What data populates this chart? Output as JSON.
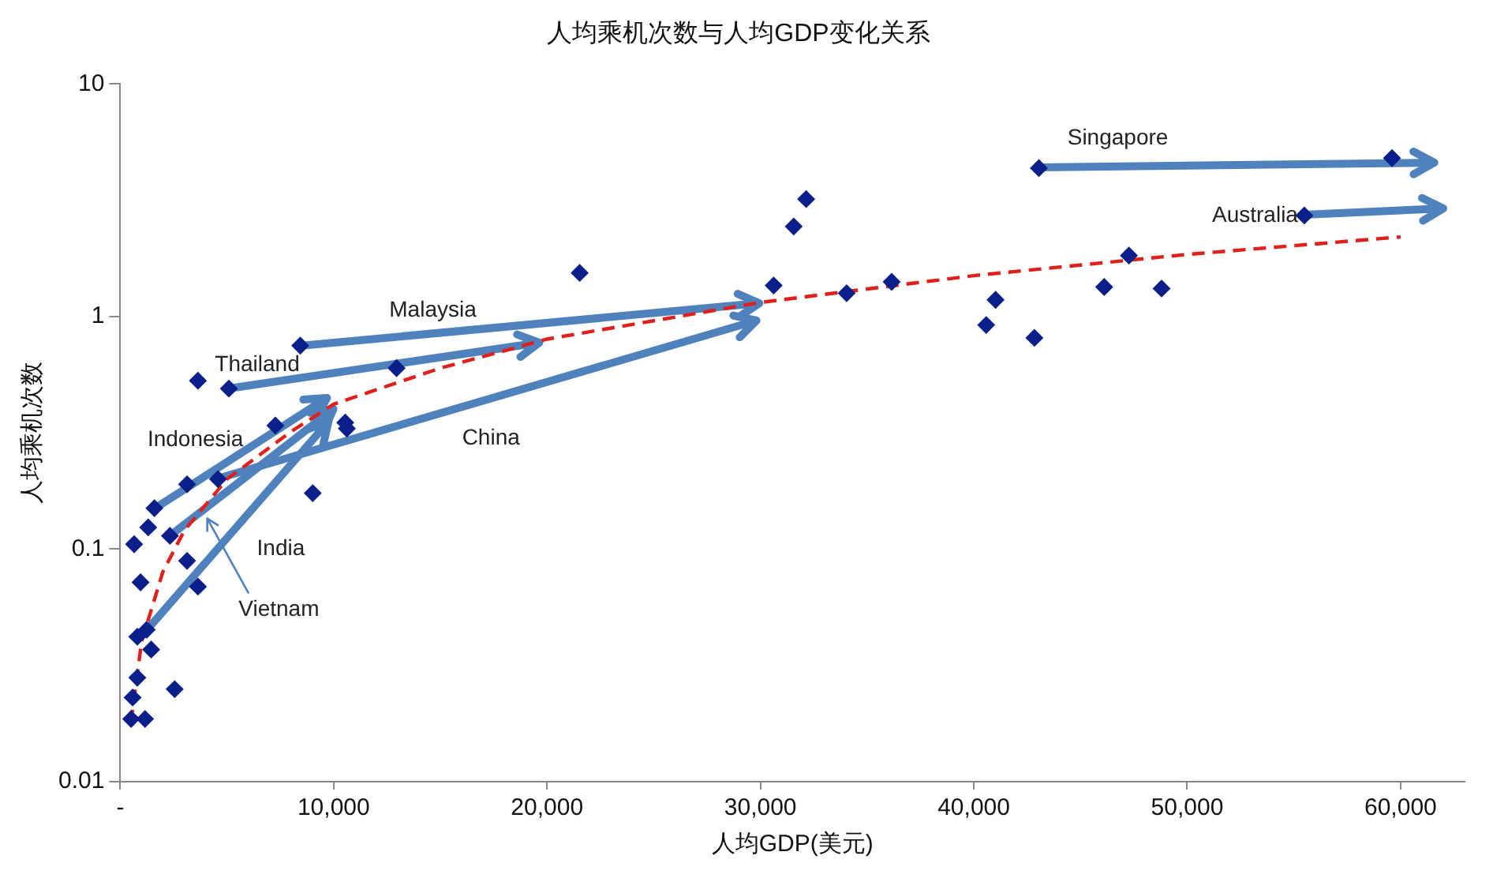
{
  "chart_data": {
    "type": "scatter",
    "title": "人均乘机次数与人均GDP变化关系",
    "xlabel": "人均GDP(美元)",
    "ylabel": "人均乘机次数",
    "log": "y",
    "grid": false,
    "legend": false,
    "xlim": [
      0,
      63000
    ],
    "xticks": [
      {
        "value": 0,
        "label": "-"
      },
      {
        "value": 10000,
        "label": "10,000"
      },
      {
        "value": 20000,
        "label": "20,000"
      },
      {
        "value": 30000,
        "label": "30,000"
      },
      {
        "value": 40000,
        "label": "40,000"
      },
      {
        "value": 50000,
        "label": "50,000"
      },
      {
        "value": 60000,
        "label": "60,000"
      }
    ],
    "ylim": [
      0.01,
      10
    ],
    "yticks": [
      0.01,
      0.1,
      1,
      10
    ],
    "annotations": [
      {
        "text": "Singapore",
        "x": 43050,
        "y": 4.35
      },
      {
        "text": "Australia",
        "x": 55490,
        "y": 2.72
      },
      "Malaysia",
      {
        "text": "Thailand",
        "x": 5090,
        "y": 0.49
      },
      "China",
      {
        "text": "Indonesia",
        "x": 1600,
        "y": 0.15
      },
      "India",
      "Vietnam"
    ],
    "series": [
      {
        "color": "#0b1f8a",
        "marker": "diamond",
        "x": [
          59600,
          43050,
          55490,
          32145,
          31560,
          21530,
          30620,
          34040,
          36150,
          47270,
          46110,
          48800,
          41020,
          40580,
          42840,
          8436,
          5090,
          3640,
          12950,
          7270,
          10545,
          10620,
          9020,
          3130,
          1600,
          1310,
          650,
          2330,
          3130,
          950,
          3640,
          1240,
          800,
          1450,
          2550,
          800,
          580,
          510,
          1160,
          4580
        ],
        "values": [
          4.8,
          4.35,
          2.72,
          3.2,
          2.44,
          1.54,
          1.36,
          1.26,
          1.41,
          1.83,
          1.34,
          1.32,
          1.18,
          0.92,
          0.81,
          0.75,
          0.49,
          0.53,
          0.6,
          0.34,
          0.35,
          0.33,
          0.174,
          0.19,
          0.15,
          0.124,
          0.105,
          0.114,
          0.089,
          0.072,
          0.069,
          0.045,
          0.042,
          0.037,
          0.025,
          0.028,
          0.023,
          0.0186,
          0.0186,
          0.2
        ]
      },
      {
        "type": "line",
        "color": "#e0201b",
        "marker": "none",
        "line_style": "dashed",
        "x": [
          500,
          1000,
          2000,
          3000,
          5000,
          8000,
          10000,
          15000,
          20000,
          30000,
          40000,
          50000,
          60000
        ],
        "values": [
          0.018,
          0.04,
          0.08,
          0.12,
          0.2,
          0.32,
          0.42,
          0.6,
          0.8,
          1.15,
          1.5,
          1.85,
          2.2
        ]
      }
    ]
  }
}
